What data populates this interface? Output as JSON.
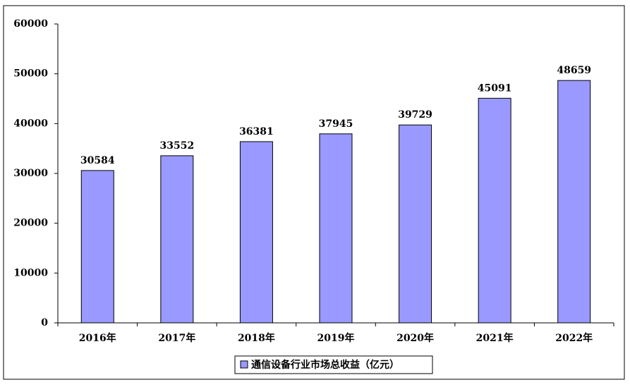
{
  "chart_data": {
    "type": "bar",
    "categories": [
      "2016年",
      "2017年",
      "2018年",
      "2019年",
      "2020年",
      "2021年",
      "2022年"
    ],
    "series": [
      {
        "name": "通信设备行业市场总收益（亿元）",
        "color": "#9999ff",
        "values": [
          30584,
          33552,
          36381,
          37945,
          39729,
          45091,
          48659
        ]
      }
    ],
    "ylim": [
      0,
      60000
    ],
    "yticks": [
      0,
      10000,
      20000,
      30000,
      40000,
      50000,
      60000
    ],
    "grid": false,
    "legend": "bottom"
  }
}
